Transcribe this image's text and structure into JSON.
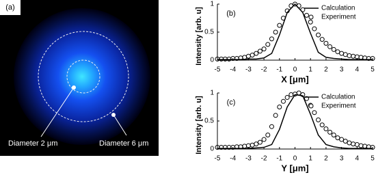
{
  "image_panel": {
    "label": "(a)",
    "annotations": [
      "Diameter 2 μm",
      "Diameter 6 μm"
    ]
  },
  "chart_data": [
    {
      "type": "line",
      "panel_label": "(b)",
      "x_label": "X [μm]",
      "y_label": "Intensity [arb. u]",
      "xlim": [
        -5,
        5
      ],
      "ylim": [
        0,
        1
      ],
      "xticks": [
        -5,
        -4,
        -3,
        -2,
        -1,
        0,
        1,
        2,
        3,
        4,
        5
      ],
      "yticks": [
        0,
        0.5,
        1
      ],
      "grid": false,
      "legend": "upper right",
      "series": [
        {
          "name": "Calculation",
          "color": "#000000",
          "style": "line",
          "x": [
            -5,
            -4.5,
            -4,
            -3.5,
            -3,
            -2.5,
            -2,
            -1.5,
            -1,
            -0.5,
            0,
            0.5,
            1,
            1.5,
            2,
            2.5,
            3,
            3.5,
            4,
            4.5,
            5
          ],
          "values": [
            0.01,
            0.01,
            0.01,
            0.01,
            0.02,
            0.02,
            0.04,
            0.12,
            0.45,
            0.85,
            1.0,
            0.85,
            0.48,
            0.14,
            0.05,
            0.03,
            0.02,
            0.01,
            0.01,
            0.01,
            0.01
          ]
        },
        {
          "name": "Experiment",
          "color": "#000000",
          "style": "markers",
          "x": [
            -5,
            -4.75,
            -4.5,
            -4.25,
            -4,
            -3.75,
            -3.5,
            -3.25,
            -3,
            -2.75,
            -2.5,
            -2.25,
            -2,
            -1.75,
            -1.5,
            -1.25,
            -1,
            -0.75,
            -0.5,
            -0.25,
            0,
            0.25,
            0.5,
            0.75,
            1,
            1.25,
            1.5,
            1.75,
            2,
            2.25,
            2.5,
            2.75,
            3,
            3.25,
            3.5,
            3.75,
            4,
            4.25,
            4.5,
            4.75,
            5
          ],
          "values": [
            0.02,
            0.02,
            0.02,
            0.02,
            0.03,
            0.03,
            0.04,
            0.05,
            0.07,
            0.09,
            0.12,
            0.16,
            0.2,
            0.28,
            0.38,
            0.5,
            0.62,
            0.75,
            0.88,
            0.97,
            1.0,
            0.97,
            0.9,
            0.8,
            0.68,
            0.56,
            0.45,
            0.37,
            0.3,
            0.24,
            0.19,
            0.15,
            0.12,
            0.1,
            0.08,
            0.07,
            0.06,
            0.05,
            0.04,
            0.03,
            0.03
          ]
        }
      ]
    },
    {
      "type": "line",
      "panel_label": "(c)",
      "x_label": "Y [μm]",
      "y_label": "Intensity [arb. u]",
      "xlim": [
        -5,
        5
      ],
      "ylim": [
        0,
        1
      ],
      "xticks": [
        -5,
        -4,
        -3,
        -2,
        -1,
        0,
        1,
        2,
        3,
        4,
        5
      ],
      "yticks": [
        0,
        0.5,
        1
      ],
      "grid": false,
      "legend": "upper right",
      "series": [
        {
          "name": "Calculation",
          "color": "#000000",
          "style": "line",
          "x": [
            -5,
            -4.5,
            -4,
            -3.5,
            -3,
            -2.5,
            -2,
            -1.5,
            -1,
            -0.5,
            0,
            0.5,
            1,
            1.5,
            2,
            2.5,
            3,
            3.5,
            4,
            4.5,
            5
          ],
          "values": [
            0.01,
            0.01,
            0.01,
            0.01,
            0.01,
            0.02,
            0.03,
            0.08,
            0.35,
            0.75,
            0.97,
            0.95,
            0.62,
            0.25,
            0.08,
            0.04,
            0.02,
            0.01,
            0.01,
            0.01,
            0.01
          ]
        },
        {
          "name": "Experiment",
          "color": "#000000",
          "style": "markers",
          "x": [
            -5,
            -4.75,
            -4.5,
            -4.25,
            -4,
            -3.75,
            -3.5,
            -3.25,
            -3,
            -2.75,
            -2.5,
            -2.25,
            -2,
            -1.75,
            -1.5,
            -1.25,
            -1,
            -0.75,
            -0.5,
            -0.25,
            0,
            0.25,
            0.5,
            0.75,
            1,
            1.25,
            1.5,
            1.75,
            2,
            2.25,
            2.5,
            2.75,
            3,
            3.25,
            3.5,
            3.75,
            4,
            4.25,
            4.5,
            4.75,
            5
          ],
          "values": [
            0.03,
            0.03,
            0.03,
            0.03,
            0.03,
            0.04,
            0.04,
            0.05,
            0.06,
            0.07,
            0.09,
            0.12,
            0.17,
            0.25,
            0.4,
            0.6,
            0.75,
            0.85,
            0.92,
            0.97,
            0.98,
            1.0,
            0.97,
            0.9,
            0.78,
            0.65,
            0.52,
            0.43,
            0.36,
            0.3,
            0.25,
            0.2,
            0.17,
            0.14,
            0.11,
            0.09,
            0.08,
            0.06,
            0.05,
            0.04,
            0.03
          ]
        }
      ]
    }
  ]
}
